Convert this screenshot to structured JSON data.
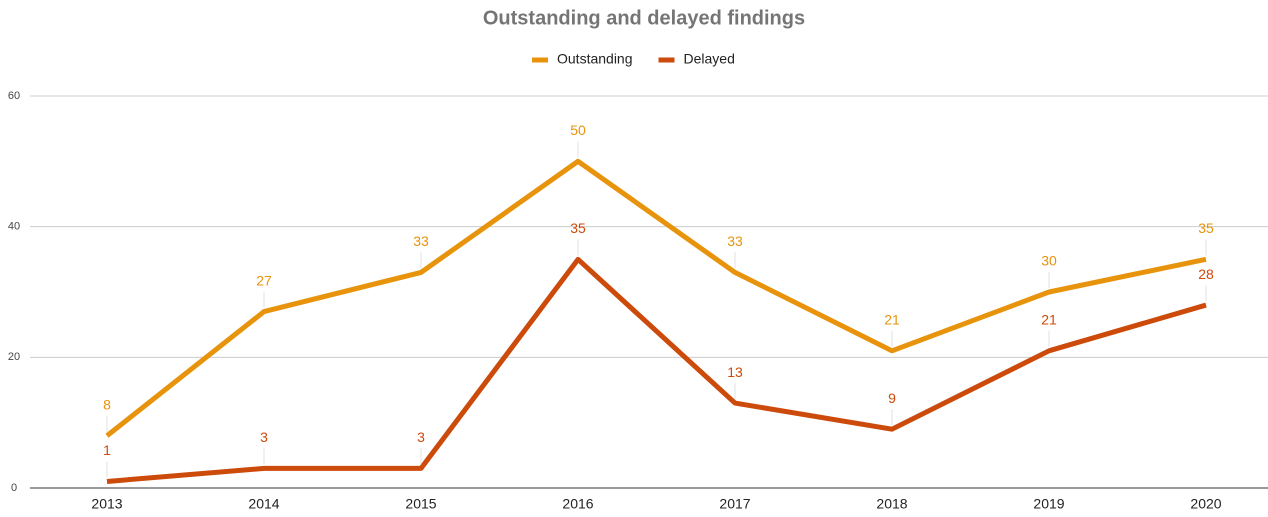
{
  "chart_data": {
    "type": "line",
    "title": "Outstanding and delayed findings",
    "categories": [
      "2013",
      "2014",
      "2015",
      "2016",
      "2017",
      "2018",
      "2019",
      "2020"
    ],
    "series": [
      {
        "name": "Outstanding",
        "color": "#e8930c",
        "values": [
          8,
          27,
          33,
          50,
          33,
          21,
          30,
          35
        ]
      },
      {
        "name": "Delayed",
        "color": "#cc4a0a",
        "values": [
          1,
          3,
          3,
          35,
          13,
          9,
          21,
          28
        ]
      }
    ],
    "ylim": [
      0,
      60
    ],
    "yticks": [
      0,
      20,
      40,
      60
    ],
    "grid": true,
    "legend": "top"
  }
}
